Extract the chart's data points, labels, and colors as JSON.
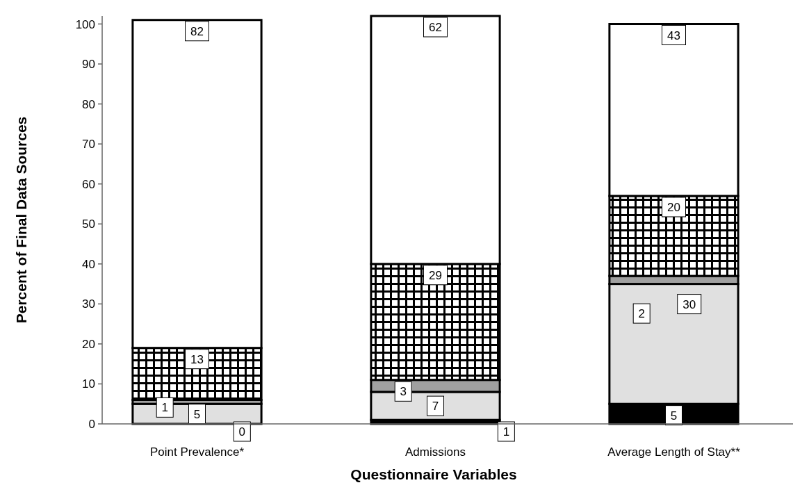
{
  "chart_data": {
    "type": "bar",
    "stacked": true,
    "xlabel": "Questionnaire Variables",
    "ylabel": "Percent of Final Data Sources",
    "categories": [
      "Point Prevalence*",
      "Admissions",
      "Average Length of Stay**"
    ],
    "ylim": [
      0,
      102
    ],
    "yticks": [
      0,
      10,
      20,
      30,
      40,
      50,
      60,
      70,
      80,
      90,
      100
    ],
    "grid": false,
    "series": [
      {
        "color": "#000000",
        "values": [
          0,
          1,
          5
        ],
        "value_labels": [
          "0",
          "1",
          "5"
        ]
      },
      {
        "color": "#e0e0e0",
        "values": [
          5,
          7,
          30
        ],
        "value_labels": [
          "5",
          "7",
          "30"
        ]
      },
      {
        "color": "#a0a0a0",
        "values": [
          1,
          3,
          2
        ],
        "value_labels": [
          "1",
          "3",
          "2"
        ]
      },
      {
        "color": "#000000",
        "values": [
          13,
          29,
          20
        ],
        "value_labels": [
          "13",
          "29",
          "20"
        ]
      },
      {
        "color": "#ffffff",
        "values": [
          82,
          62,
          43
        ],
        "value_labels": [
          "82",
          "62",
          "43"
        ]
      }
    ]
  }
}
